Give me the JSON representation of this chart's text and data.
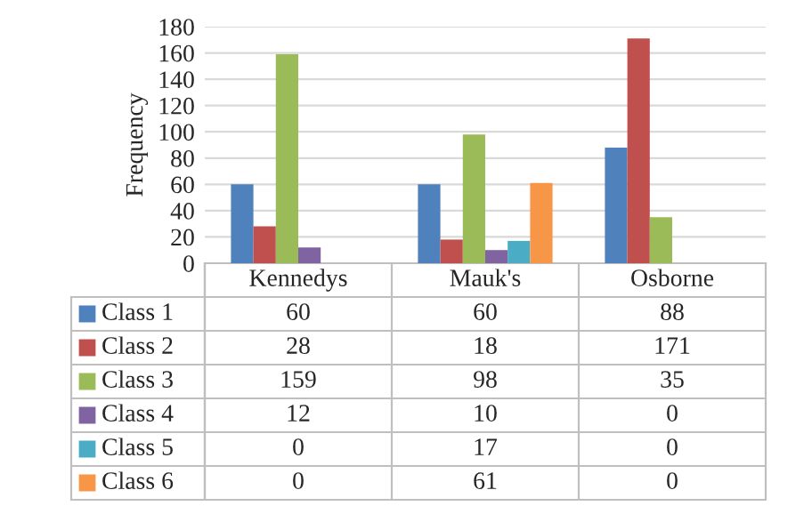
{
  "chart_data": {
    "type": "bar",
    "ylabel": "Frequency",
    "categories": [
      "Kennedys",
      "Mauk's",
      "Osborne"
    ],
    "series": [
      {
        "name": "Class 1",
        "color": "#4f81bd",
        "values": [
          60,
          60,
          88
        ]
      },
      {
        "name": "Class 2",
        "color": "#c0504d",
        "values": [
          28,
          18,
          171
        ]
      },
      {
        "name": "Class 3",
        "color": "#9bbb59",
        "values": [
          159,
          98,
          35
        ]
      },
      {
        "name": "Class 4",
        "color": "#8064a2",
        "values": [
          12,
          10,
          0
        ]
      },
      {
        "name": "Class 5",
        "color": "#4bacc6",
        "values": [
          0,
          17,
          0
        ]
      },
      {
        "name": "Class 6",
        "color": "#f79646",
        "values": [
          0,
          61,
          0
        ]
      }
    ],
    "ylim": [
      0,
      180
    ],
    "yticks": [
      0,
      20,
      40,
      60,
      80,
      100,
      120,
      140,
      160,
      180
    ],
    "grid": "y",
    "legend": "bottom",
    "data_labels": true
  }
}
